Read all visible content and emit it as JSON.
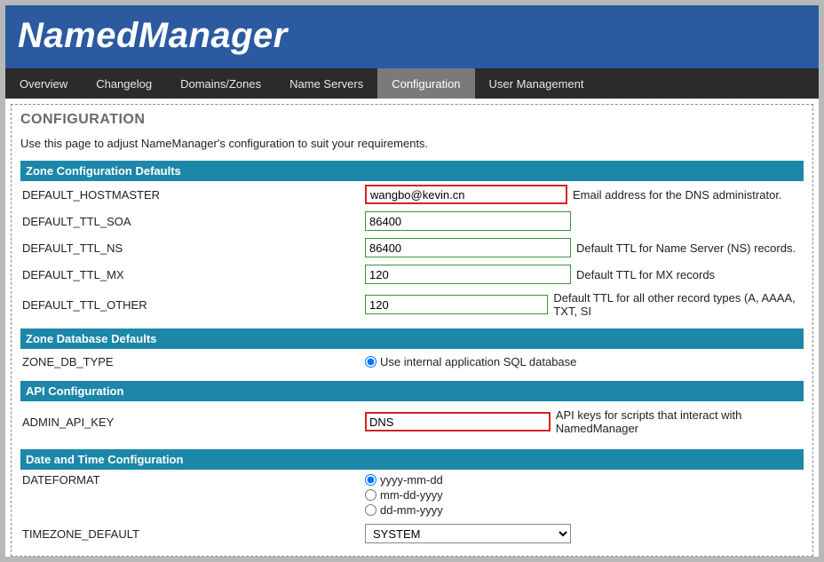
{
  "app": {
    "title": "NamedManager"
  },
  "nav": {
    "items": [
      {
        "label": "Overview",
        "active": false
      },
      {
        "label": "Changelog",
        "active": false
      },
      {
        "label": "Domains/Zones",
        "active": false
      },
      {
        "label": "Name Servers",
        "active": false
      },
      {
        "label": "Configuration",
        "active": true
      },
      {
        "label": "User Management",
        "active": false
      }
    ]
  },
  "page": {
    "heading": "CONFIGURATION",
    "description": "Use this page to adjust NameManager's configuration to suit your requirements."
  },
  "sections": {
    "zone_defaults": {
      "title": "Zone Configuration Defaults",
      "fields": {
        "hostmaster": {
          "label": "DEFAULT_HOSTMASTER",
          "value": "wangbo@kevin.cn",
          "help": "Email address for the DNS administrator."
        },
        "ttl_soa": {
          "label": "DEFAULT_TTL_SOA",
          "value": "86400",
          "help": ""
        },
        "ttl_ns": {
          "label": "DEFAULT_TTL_NS",
          "value": "86400",
          "help": "Default TTL for Name Server (NS) records."
        },
        "ttl_mx": {
          "label": "DEFAULT_TTL_MX",
          "value": "120",
          "help": "Default TTL for MX records"
        },
        "ttl_other": {
          "label": "DEFAULT_TTL_OTHER",
          "value": "120",
          "help": "Default TTL for all other record types (A, AAAA, TXT, SI"
        }
      }
    },
    "zone_db": {
      "title": "Zone Database Defaults",
      "fields": {
        "db_type": {
          "label": "ZONE_DB_TYPE",
          "option": "Use internal application SQL database"
        }
      }
    },
    "api": {
      "title": "API Configuration",
      "fields": {
        "admin_api_key": {
          "label": "ADMIN_API_KEY",
          "value": "DNS",
          "help": "API keys for scripts that interact with NamedManager"
        }
      }
    },
    "datetime": {
      "title": "Date and Time Configuration",
      "fields": {
        "dateformat": {
          "label": "DATEFORMAT",
          "options": [
            "yyyy-mm-dd",
            "mm-dd-yyyy",
            "dd-mm-yyyy"
          ],
          "selected": "yyyy-mm-dd"
        },
        "timezone": {
          "label": "TIMEZONE_DEFAULT",
          "value": "SYSTEM"
        }
      }
    }
  },
  "colors": {
    "header_bg": "#2c5aa0",
    "nav_bg": "#2b2b2b",
    "nav_active_bg": "#7a7a7a",
    "section_bg": "#1c87a8",
    "input_border_ok": "#3a923a",
    "input_border_highlight": "#d62222",
    "page_bg": "#b8b8b8"
  }
}
